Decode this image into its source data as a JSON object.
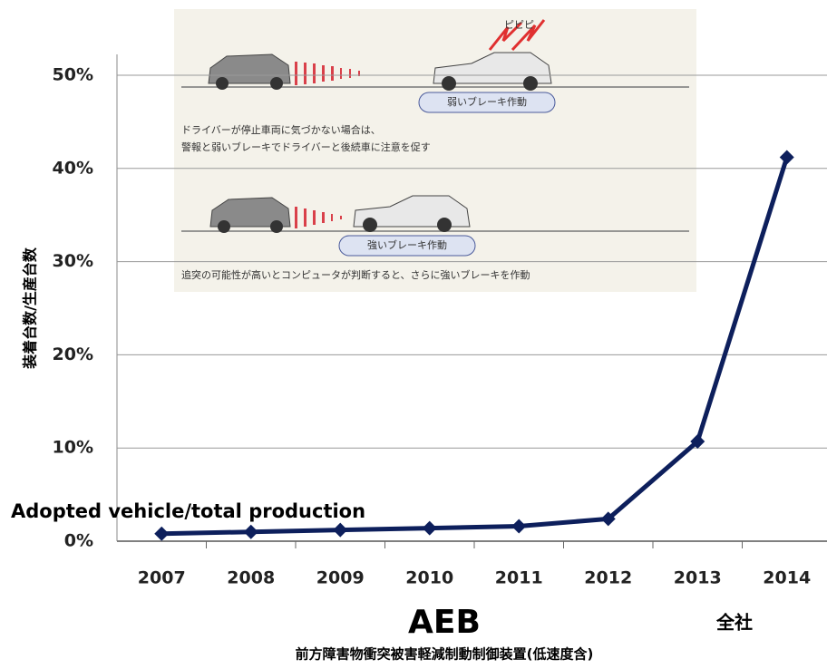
{
  "chart_data": {
    "type": "line",
    "y_label": "装着台数/生産台数",
    "annotation": "Adopted vehicle/total production",
    "x_label": "AEB",
    "x_sublabel": "前方障害物衝突被害軽減制動制御装置(低速度含)",
    "scope": "全社",
    "categories": [
      "2007",
      "2008",
      "2009",
      "2010",
      "2011",
      "2012",
      "2013",
      "2014"
    ],
    "series": [
      {
        "color": "#0d1f5c",
        "values": [
          0.8,
          1.0,
          1.2,
          1.4,
          1.6,
          2.4,
          10.7,
          41.2
        ]
      }
    ],
    "ylim": [
      0,
      50
    ],
    "yticks": [
      {
        "value": 0,
        "label": "0%"
      },
      {
        "value": 10,
        "label": "10%"
      },
      {
        "value": 20,
        "label": "20%"
      },
      {
        "value": 30,
        "label": "30%"
      },
      {
        "value": 40,
        "label": "40%"
      },
      {
        "value": 50,
        "label": "50%"
      }
    ],
    "grid": true
  },
  "inset": {
    "sound": "ピピピ",
    "weak_brake": "弱いブレーキ作動",
    "text1_line1": "ドライバーが停止車両に気づかない場合は、",
    "text1_line2": "警報と弱いブレーキでドライバーと後続車に注意を促す",
    "strong_brake": "強いブレーキ作動",
    "text2": "追突の可能性が高いとコンピュータが判断すると、さらに強いブレーキを作動"
  }
}
